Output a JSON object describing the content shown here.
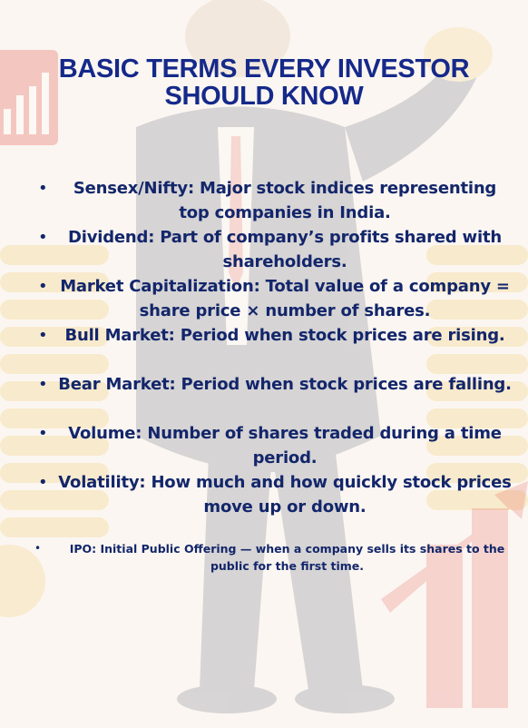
{
  "title_lines": [
    "BASIC TERMS EVERY INVESTOR",
    "SHOULD KNOW"
  ],
  "terms": [
    {
      "text": "Sensex/Nifty: Major stock indices representing top companies in India."
    },
    {
      "text": "Dividend: Part of company’s profits shared with shareholders."
    },
    {
      "text": "Market Capitalization: Total value of a company = share price × number of shares."
    },
    {
      "text": "Bull Market: Period when stock prices are rising."
    },
    {
      "text": "Bear Market: Period when stock prices are falling."
    },
    {
      "text": "Volume: Number of shares traded during a time period."
    },
    {
      "text": "Volatility: How much and how quickly stock prices move up or down."
    }
  ],
  "ipo": {
    "text": "IPO: Initial Public Offering — when a company sells its shares to the public for the first time."
  },
  "bullet": "•",
  "colors": {
    "heading": "#15298a",
    "text": "#13266b",
    "background": "#fbf6f1",
    "accent_red": "#e23a31"
  }
}
